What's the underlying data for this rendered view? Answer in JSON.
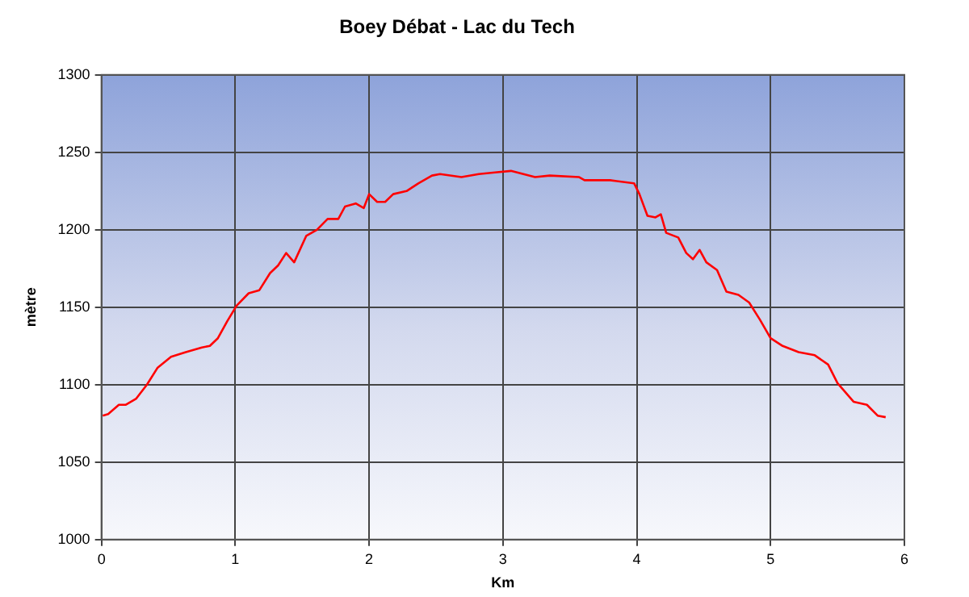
{
  "chart_data": {
    "type": "line",
    "title": "Boey Débat - Lac du Tech",
    "xlabel": "Km",
    "ylabel": "mètre",
    "xlim": [
      0,
      6
    ],
    "xticks": [
      0,
      1,
      2,
      3,
      4,
      5,
      6
    ],
    "ylim": [
      1000,
      1300
    ],
    "yticks": [
      1000,
      1050,
      1100,
      1150,
      1200,
      1250,
      1300
    ],
    "grid": true,
    "legend": false,
    "marker": "none",
    "line_style": "solid",
    "series": [
      {
        "color": "#ff0000",
        "x": [
          0.01,
          0.05,
          0.13,
          0.18,
          0.26,
          0.34,
          0.42,
          0.52,
          0.63,
          0.75,
          0.81,
          0.87,
          0.94,
          1.01,
          1.1,
          1.18,
          1.26,
          1.32,
          1.38,
          1.44,
          1.53,
          1.61,
          1.69,
          1.77,
          1.82,
          1.9,
          1.96,
          2.0,
          2.06,
          2.12,
          2.18,
          2.28,
          2.37,
          2.47,
          2.53,
          2.69,
          2.82,
          2.94,
          3.06,
          3.24,
          3.35,
          3.57,
          3.61,
          3.8,
          3.98,
          4.02,
          4.08,
          4.14,
          4.18,
          4.22,
          4.31,
          4.37,
          4.42,
          4.47,
          4.52,
          4.6,
          4.67,
          4.76,
          4.84,
          4.92,
          5.0,
          5.09,
          5.21,
          5.33,
          5.43,
          5.5,
          5.62,
          5.72,
          5.8,
          5.86
        ],
        "values": [
          1080,
          1081,
          1087,
          1087,
          1091,
          1100,
          1111,
          1118,
          1121,
          1124,
          1125,
          1130,
          1141,
          1151,
          1159,
          1161,
          1172,
          1177,
          1185,
          1179,
          1196,
          1200,
          1207,
          1207,
          1215,
          1217,
          1214,
          1223,
          1218,
          1218,
          1223,
          1225,
          1230,
          1235,
          1236,
          1234,
          1236,
          1237,
          1238,
          1234,
          1235,
          1234,
          1232,
          1232,
          1230,
          1223,
          1209,
          1208,
          1210,
          1198,
          1195,
          1185,
          1181,
          1187,
          1179,
          1174,
          1160,
          1158,
          1153,
          1142,
          1130,
          1125,
          1121,
          1119,
          1113,
          1101,
          1089,
          1087,
          1080,
          1079
        ]
      }
    ]
  }
}
